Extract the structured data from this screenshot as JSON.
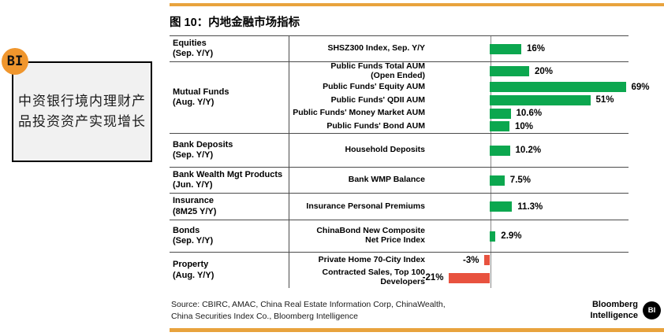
{
  "sidebar": {
    "bi_badge": "BI",
    "callout_line1": "中资银行境内理财产",
    "callout_line2": "品投资资产实现增长"
  },
  "figure": {
    "title": "图 10：内地金融市场指标",
    "source_line1": "Source: CBIRC, AMAC, China Real Estate Information Corp, ChinaWealth,",
    "source_line2": "China Securities Index Co., Bloomberg Intelligence",
    "brand": {
      "name_line1": "Bloomberg",
      "name_line2": "Intelligence",
      "badge": "BI"
    }
  },
  "chart_data": {
    "type": "bar",
    "orientation": "horizontal",
    "value_unit": "%",
    "xlim": [
      -25,
      70
    ],
    "grid": "row-dividers",
    "colors": {
      "positive": "#0ca74f",
      "negative": "#e8523f",
      "accent_rule": "#e8a33d"
    },
    "groups": [
      {
        "category": "Equities",
        "period": "(Sep. Y/Y)",
        "items": [
          {
            "label_lines": [
              "SHSZ300 Index, Sep. Y/Y"
            ],
            "value": 16,
            "display": "16%"
          }
        ]
      },
      {
        "category": "Mutual Funds",
        "period": "(Aug. Y/Y)",
        "items": [
          {
            "label_lines": [
              "Public Funds Total AUM",
              "(Open Ended)"
            ],
            "value": 20,
            "display": "20%"
          },
          {
            "label_lines": [
              "Public Funds' Equity AUM"
            ],
            "value": 69,
            "display": "69%"
          },
          {
            "label_lines": [
              "Public Funds' QDII AUM"
            ],
            "value": 51,
            "display": "51%"
          },
          {
            "label_lines": [
              "Public Funds' Money Market AUM"
            ],
            "value": 10.6,
            "display": "10.6%"
          },
          {
            "label_lines": [
              "Public Funds' Bond AUM"
            ],
            "value": 10,
            "display": "10%"
          }
        ]
      },
      {
        "category": "Bank Deposits",
        "period": "(Sep. Y/Y)",
        "items": [
          {
            "label_lines": [
              "Household Deposits"
            ],
            "value": 10.2,
            "display": "10.2%"
          }
        ]
      },
      {
        "category": "Bank Wealth Mgt Products",
        "period": "(Jun. Y/Y)",
        "items": [
          {
            "label_lines": [
              "Bank WMP Balance"
            ],
            "value": 7.5,
            "display": "7.5%"
          }
        ]
      },
      {
        "category": "Insurance",
        "period": "(8M25 Y/Y)",
        "items": [
          {
            "label_lines": [
              "Insurance Personal Premiums"
            ],
            "value": 11.3,
            "display": "11.3%"
          }
        ]
      },
      {
        "category": "Bonds",
        "period": "(Sep. Y/Y)",
        "items": [
          {
            "label_lines": [
              "ChinaBond New Composite",
              "Net Price Index"
            ],
            "value": 2.9,
            "display": "2.9%"
          }
        ]
      },
      {
        "category": "Property",
        "period": "(Aug. Y/Y)",
        "items": [
          {
            "label_lines": [
              "Private Home 70-City Index"
            ],
            "value": -3,
            "display": "-3%"
          },
          {
            "label_lines": [
              "Contracted Sales, Top 100",
              "Developers"
            ],
            "value": -21,
            "display": "-21%"
          }
        ]
      }
    ]
  }
}
